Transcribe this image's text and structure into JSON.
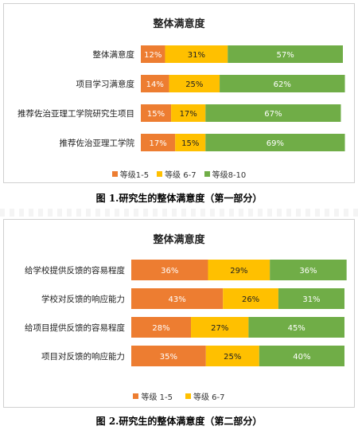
{
  "chart_data": [
    {
      "type": "bar",
      "orientation": "horizontal",
      "stacked": true,
      "title": "整体满意度",
      "categories": [
        "整体满意度",
        "项目学习满意度",
        "推荐佐治亚理工学院研究生项目",
        "推荐佐治亚理工学院"
      ],
      "series": [
        {
          "name": "等级1-5",
          "color": "#ed7d31",
          "values": [
            12,
            14,
            15,
            17
          ]
        },
        {
          "name": "等级 6-7",
          "color": "#ffc000",
          "values": [
            31,
            25,
            17,
            15
          ]
        },
        {
          "name": "等级8-10",
          "color": "#70ad47",
          "values": [
            57,
            62,
            67,
            69
          ]
        }
      ],
      "value_suffix": "%",
      "xlim": [
        0,
        100
      ],
      "legend": "bottom",
      "caption": "图 1.研究生的整体满意度（第一部分）"
    },
    {
      "type": "bar",
      "orientation": "horizontal",
      "stacked": true,
      "title": "整体满意度",
      "categories": [
        "给学校提供反馈的容易程度",
        "学校对反馈的响应能力",
        "给项目提供反馈的容易程度",
        "项目对反馈的响应能力"
      ],
      "series": [
        {
          "name": "等级 1-5",
          "color": "#ed7d31",
          "values": [
            36,
            43,
            28,
            35
          ]
        },
        {
          "name": "等级 6-7",
          "color": "#ffc000",
          "values": [
            29,
            26,
            27,
            25
          ]
        },
        {
          "name": "",
          "color": "#70ad47",
          "values": [
            36,
            31,
            45,
            40
          ]
        }
      ],
      "value_suffix": "%",
      "xlim": [
        0,
        100
      ],
      "legend": "bottom",
      "caption": "图 2.研究生的整体满意度（第二部分）"
    }
  ]
}
